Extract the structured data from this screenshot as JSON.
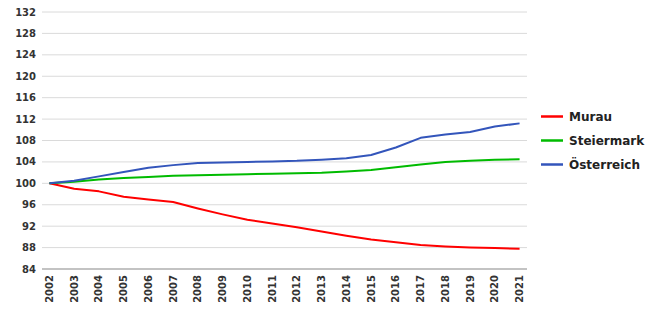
{
  "chart_data": {
    "type": "line",
    "x": [
      2002,
      2003,
      2004,
      2005,
      2006,
      2007,
      2008,
      2009,
      2010,
      2011,
      2012,
      2013,
      2014,
      2015,
      2016,
      2017,
      2018,
      2019,
      2020,
      2021
    ],
    "series": [
      {
        "name": "Murau",
        "color": "#ff0000",
        "values": [
          100.0,
          99.0,
          98.5,
          97.5,
          97.0,
          96.5,
          95.3,
          94.2,
          93.2,
          92.5,
          91.8,
          91.0,
          90.2,
          89.5,
          89.0,
          88.5,
          88.2,
          88.0,
          87.9,
          87.8
        ]
      },
      {
        "name": "Steiermark",
        "color": "#00bb00",
        "values": [
          100.0,
          100.3,
          100.7,
          101.0,
          101.2,
          101.4,
          101.5,
          101.6,
          101.7,
          101.8,
          101.9,
          102.0,
          102.2,
          102.5,
          103.0,
          103.5,
          104.0,
          104.2,
          104.4,
          104.5
        ]
      },
      {
        "name": "Österreich",
        "color": "#3355bb",
        "values": [
          100.0,
          100.5,
          101.3,
          102.1,
          102.9,
          103.4,
          103.8,
          103.9,
          104.0,
          104.1,
          104.2,
          104.4,
          104.7,
          105.3,
          106.7,
          108.5,
          109.1,
          109.6,
          110.6,
          111.2
        ]
      }
    ],
    "xlim": [
      2001.7,
      2021.3
    ],
    "xticks": [
      2002,
      2003,
      2004,
      2005,
      2006,
      2007,
      2008,
      2009,
      2010,
      2011,
      2012,
      2013,
      2014,
      2015,
      2016,
      2017,
      2018,
      2019,
      2020,
      2021
    ],
    "ylim": [
      84,
      132
    ],
    "yticks": [
      84,
      88,
      92,
      96,
      100,
      104,
      108,
      112,
      116,
      120,
      124,
      128,
      132
    ],
    "grid": true,
    "legend": "right"
  }
}
